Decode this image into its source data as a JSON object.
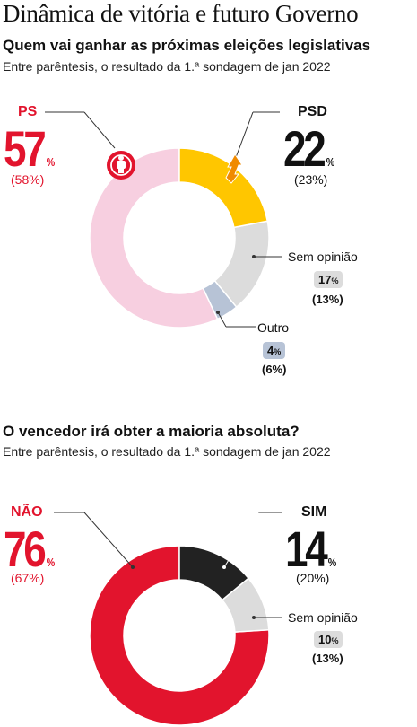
{
  "title": "Dinâmica de vitória e futuro Governo",
  "colors": {
    "ps": "#e2142d",
    "ps_light": "#f7cfe0",
    "psd": "#ffc600",
    "none": "#dcdcdc",
    "other": "#b7c3d6",
    "sim": "#222222",
    "nao": "#e2142d"
  },
  "chart_data": [
    {
      "type": "pie",
      "donut": true,
      "title": "Quem vai ganhar as próximas eleições legislativas",
      "subtitle": "Entre parêntesis, o resultado da 1.ª sondagem de jan 2022",
      "series": [
        {
          "name": "PSD",
          "value": 22,
          "previous": "(23%)",
          "color": "#ffc600"
        },
        {
          "name": "Sem opinião",
          "value": 17,
          "previous": "(13%)",
          "color": "#dcdcdc"
        },
        {
          "name": "Outro",
          "value": 4,
          "previous": "(6%)",
          "color": "#b7c3d6"
        },
        {
          "name": "PS",
          "value": 57,
          "previous": "(58%)",
          "color": "#f7cfe0"
        }
      ],
      "labels": {
        "ps": "PS",
        "ps_value": "57",
        "ps_prev": "(58%)",
        "psd": "PSD",
        "psd_value": "22",
        "psd_prev": "(23%)",
        "none": "Sem opinião",
        "none_value": "17",
        "none_prev": "(13%)",
        "other": "Outro",
        "other_value": "4",
        "other_prev": "(6%)",
        "pct": "%"
      },
      "icons": [
        "ps-fist-rose-logo-icon",
        "psd-arrow-logo-icon"
      ]
    },
    {
      "type": "pie",
      "donut": true,
      "title": "O vencedor irá obter a maioria absoluta?",
      "subtitle": "Entre parêntesis, o resultado da 1.ª sondagem de jan 2022",
      "series": [
        {
          "name": "SIM",
          "value": 14,
          "previous": "(20%)",
          "color": "#222222"
        },
        {
          "name": "Sem opinião",
          "value": 10,
          "previous": "(13%)",
          "color": "#dcdcdc"
        },
        {
          "name": "NÃO",
          "value": 76,
          "previous": "(67%)",
          "color": "#e2142d"
        }
      ],
      "labels": {
        "nao": "NÃO",
        "nao_value": "76",
        "nao_prev": "(67%)",
        "sim": "SIM",
        "sim_value": "14",
        "sim_prev": "(20%)",
        "none": "Sem opinião",
        "none_value": "10",
        "none_prev": "(13%)",
        "pct": "%"
      }
    }
  ]
}
